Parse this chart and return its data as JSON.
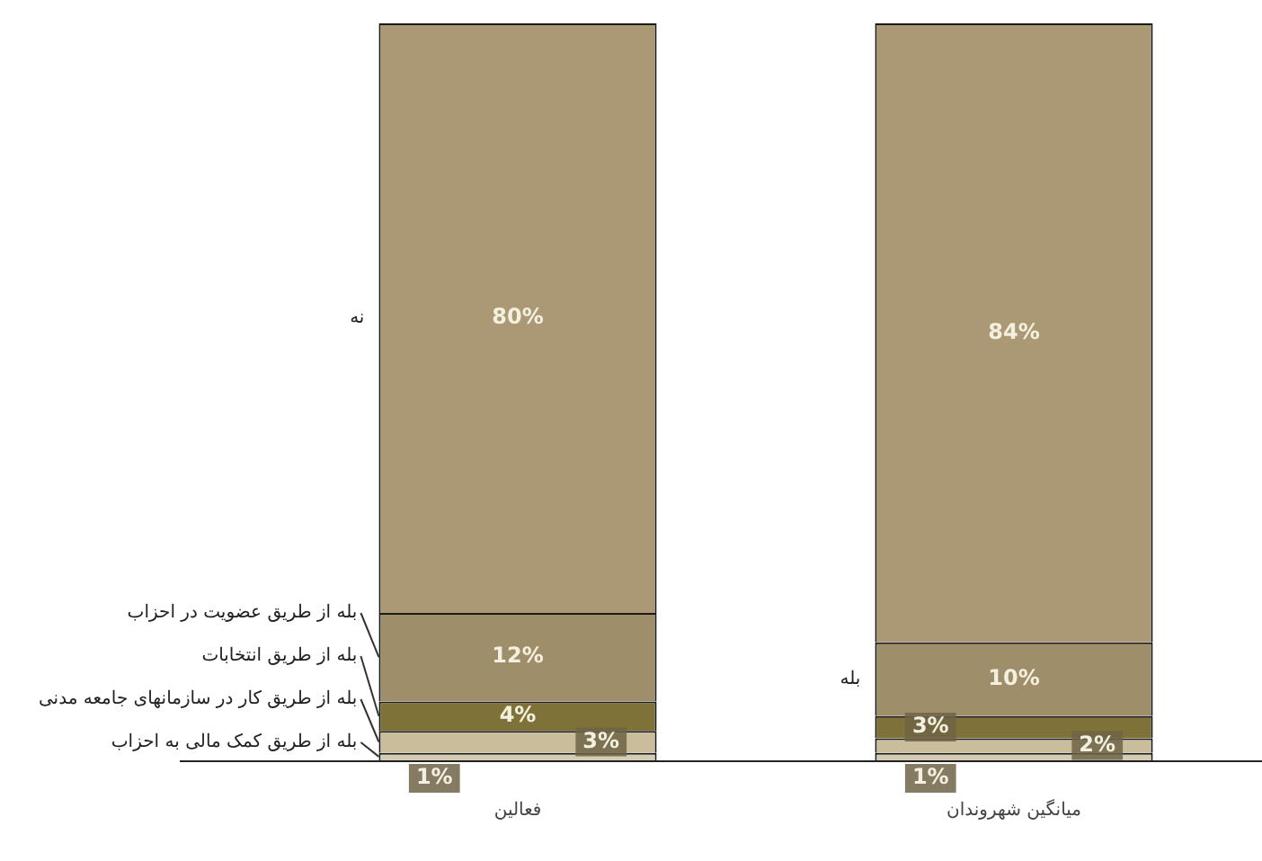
{
  "chart_data": {
    "type": "bar",
    "stacked": true,
    "categories": [
      "فعالین",
      "میانگین شهروندان"
    ],
    "ylim": [
      0,
      100
    ],
    "grid": false,
    "legend": false,
    "tick_labels": "x",
    "series": [
      {
        "name": "بله از طریق کمک مالی به احزاب",
        "color": "#d4ccb4",
        "values": [
          1,
          1
        ],
        "value_labels": [
          "1%",
          "1%"
        ]
      },
      {
        "name": "بله از طریق کار در سازمانهای جامعه مدنی",
        "color": "#c9bd9c",
        "values": [
          3,
          2
        ],
        "value_labels": [
          "3%",
          "2%"
        ]
      },
      {
        "name": "بله از طریق انتخابات",
        "color": "#7f7238",
        "values": [
          4,
          3
        ],
        "value_labels": [
          "4%",
          "3%"
        ]
      },
      {
        "name": "بله از طریق عضویت در احزاب",
        "color": "#9e8e6a",
        "values": [
          12,
          10
        ],
        "value_labels": [
          "12%",
          "10%"
        ]
      },
      {
        "name": "نه",
        "color": "#ab9874",
        "values": [
          80,
          84
        ],
        "value_labels": [
          "80%",
          "84%"
        ]
      }
    ],
    "annotations": [
      "بله"
    ]
  }
}
